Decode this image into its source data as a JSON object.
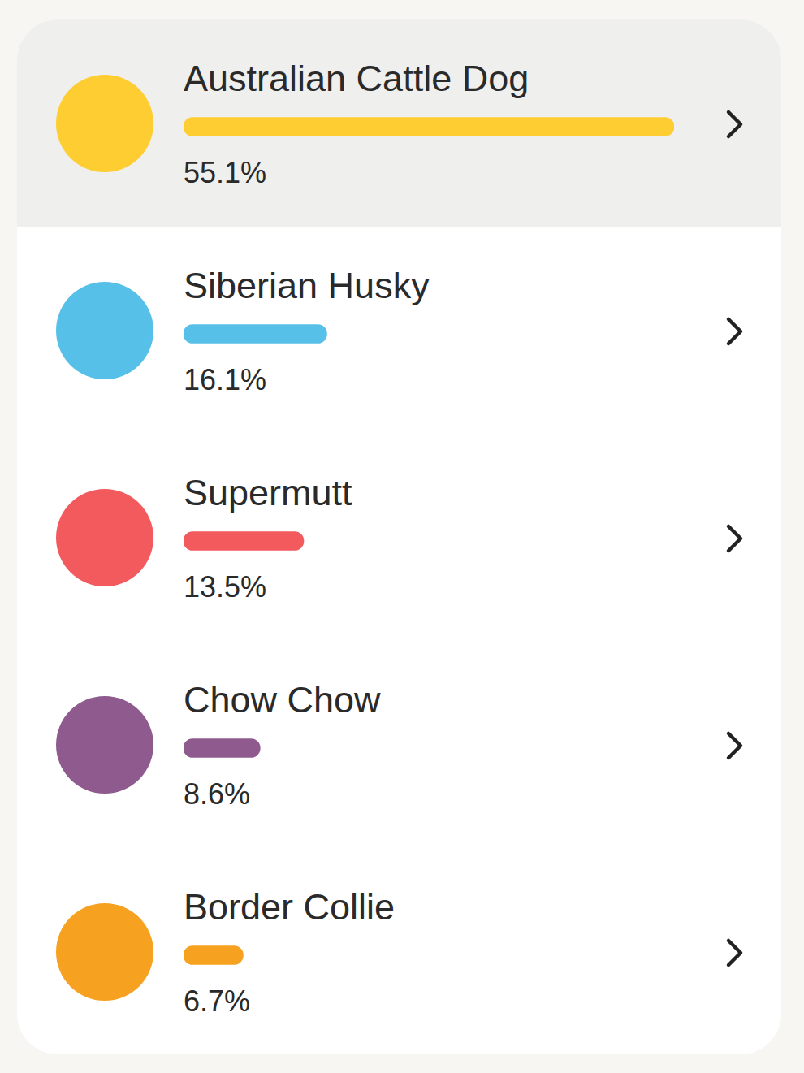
{
  "chart_data": {
    "type": "bar",
    "orientation": "horizontal",
    "categories": [
      "Australian Cattle Dog",
      "Siberian Husky",
      "Supermutt",
      "Chow Chow",
      "Border Collie"
    ],
    "values": [
      55.1,
      16.1,
      13.5,
      8.6,
      6.7
    ],
    "value_labels": [
      "55.1%",
      "16.1%",
      "13.5%",
      "8.6%",
      "6.7%"
    ],
    "colors": [
      "#fecd31",
      "#56c0e8",
      "#f25a5e",
      "#8f5b8f",
      "#f6a11f"
    ],
    "xlim": [
      0,
      55.1
    ],
    "tick_labels": false,
    "grid": false,
    "data_labels": true
  }
}
